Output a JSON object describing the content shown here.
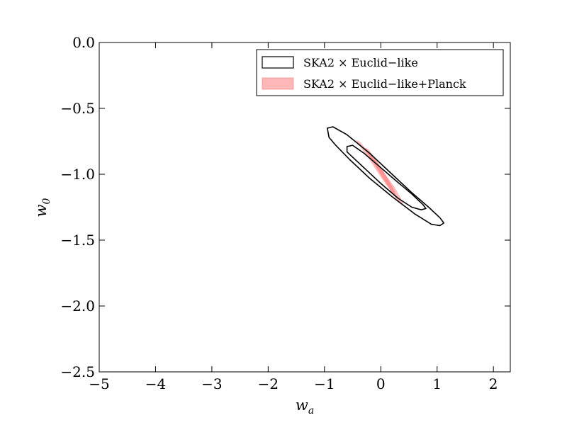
{
  "chart_data": {
    "type": "contour",
    "xlabel": "w_a",
    "ylabel": "w_0",
    "xlim": [
      -5,
      2.3
    ],
    "ylim": [
      -2.5,
      0.0
    ],
    "xticks": [
      -5,
      -4,
      -3,
      -2,
      -1,
      0,
      1,
      2
    ],
    "yticks": [
      0.0,
      -0.5,
      -1.0,
      -1.5,
      -2.0,
      -2.5
    ],
    "xtick_labels": [
      "−5",
      "−4",
      "−3",
      "−2",
      "−1",
      "0",
      "1",
      "2"
    ],
    "ytick_labels": [
      "0.0",
      "−0.5",
      "−1.0",
      "−1.5",
      "−2.0",
      "−2.5"
    ],
    "grid": false,
    "legend_placement": "top-right",
    "legend": [
      {
        "label": "SKA2 × Euclid−like",
        "style": "outline",
        "color": "#000000"
      },
      {
        "label": "SKA2 × Euclid−like+Planck",
        "style": "filled",
        "color": "#ff6f6f"
      }
    ],
    "series": [
      {
        "name": "SKA2 × Euclid−like",
        "contours": [
          {
            "level": "outer",
            "points": [
              [
                -0.95,
                -0.65
              ],
              [
                -0.85,
                -0.64
              ],
              [
                -0.6,
                -0.7
              ],
              [
                -0.2,
                -0.84
              ],
              [
                0.2,
                -1.0
              ],
              [
                0.55,
                -1.14
              ],
              [
                0.85,
                -1.25
              ],
              [
                1.05,
                -1.33
              ],
              [
                1.12,
                -1.37
              ],
              [
                1.05,
                -1.39
              ],
              [
                0.9,
                -1.38
              ],
              [
                0.6,
                -1.3
              ],
              [
                0.2,
                -1.17
              ],
              [
                -0.2,
                -1.03
              ],
              [
                -0.55,
                -0.89
              ],
              [
                -0.8,
                -0.78
              ],
              [
                -0.92,
                -0.72
              ]
            ]
          },
          {
            "level": "inner",
            "points": [
              [
                -0.6,
                -0.79
              ],
              [
                -0.5,
                -0.78
              ],
              [
                -0.3,
                -0.84
              ],
              [
                0.0,
                -0.95
              ],
              [
                0.3,
                -1.06
              ],
              [
                0.55,
                -1.15
              ],
              [
                0.75,
                -1.23
              ],
              [
                0.8,
                -1.26
              ],
              [
                0.72,
                -1.27
              ],
              [
                0.55,
                -1.25
              ],
              [
                0.3,
                -1.18
              ],
              [
                0.0,
                -1.07
              ],
              [
                -0.3,
                -0.95
              ],
              [
                -0.5,
                -0.87
              ],
              [
                -0.6,
                -0.83
              ]
            ]
          }
        ]
      },
      {
        "name": "SKA2 × Euclid−like+Planck",
        "contours": [
          {
            "level": "outer",
            "points": [
              [
                -0.45,
                -0.74
              ],
              [
                -0.38,
                -0.75
              ],
              [
                -0.2,
                -0.84
              ],
              [
                0.05,
                -0.98
              ],
              [
                0.25,
                -1.1
              ],
              [
                0.38,
                -1.2
              ],
              [
                0.4,
                -1.24
              ],
              [
                0.33,
                -1.22
              ],
              [
                0.18,
                -1.13
              ],
              [
                -0.02,
                -1.01
              ],
              [
                -0.2,
                -0.89
              ],
              [
                -0.35,
                -0.8
              ]
            ]
          },
          {
            "level": "inner",
            "points": [
              [
                -0.28,
                -0.8
              ],
              [
                -0.22,
                -0.81
              ],
              [
                -0.05,
                -0.91
              ],
              [
                0.12,
                -1.03
              ],
              [
                0.25,
                -1.13
              ],
              [
                0.27,
                -1.17
              ],
              [
                0.2,
                -1.14
              ],
              [
                0.05,
                -1.04
              ],
              [
                -0.12,
                -0.92
              ],
              [
                -0.24,
                -0.84
              ]
            ]
          }
        ]
      }
    ]
  }
}
